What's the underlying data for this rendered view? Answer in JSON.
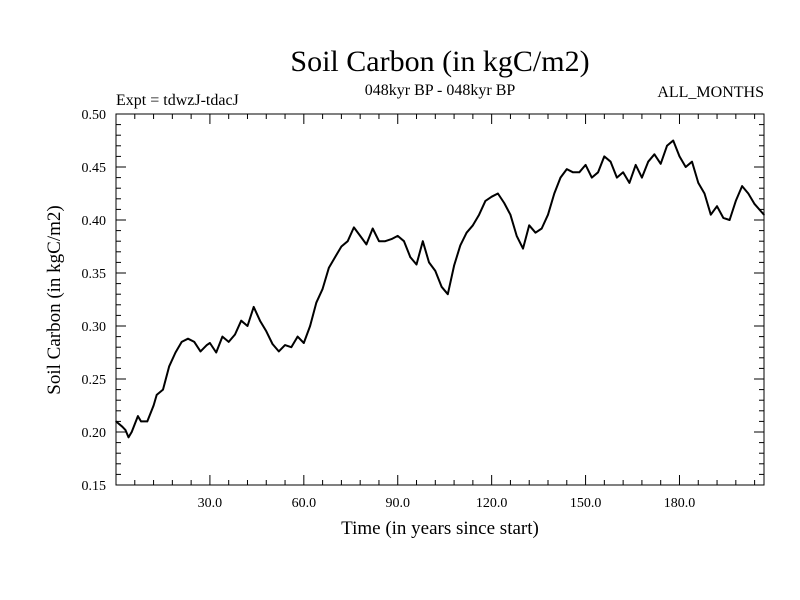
{
  "chart_data": {
    "type": "line",
    "title": "Soil Carbon (in kgC/m2)",
    "subtitle_left": "Expt = tdwzJ-tdacJ",
    "subtitle_center": "048kyr BP - 048kyr BP",
    "subtitle_right": "ALL_MONTHS",
    "xlabel": "Time (in years since start)",
    "ylabel": "Soil Carbon (in kgC/m2)",
    "xlim": [
      0,
      207
    ],
    "ylim": [
      0.15,
      0.5
    ],
    "x_ticks": [
      30,
      60,
      90,
      120,
      150,
      180
    ],
    "x_tick_labels": [
      "30.0",
      "60.0",
      "90.0",
      "120.0",
      "150.0",
      "180.0"
    ],
    "y_ticks": [
      0.15,
      0.2,
      0.25,
      0.3,
      0.35,
      0.4,
      0.45,
      0.5
    ],
    "y_tick_labels": [
      "0.15",
      "0.20",
      "0.25",
      "0.30",
      "0.35",
      "0.40",
      "0.45",
      "0.50"
    ],
    "series": [
      {
        "name": "Soil Carbon",
        "x": [
          0,
          2,
          3,
          4,
          5,
          7,
          8,
          10,
          12,
          13,
          15,
          17,
          19,
          21,
          23,
          25,
          27,
          29,
          30,
          32,
          34,
          36,
          38,
          40,
          42,
          44,
          46,
          48,
          50,
          52,
          54,
          56,
          58,
          60,
          62,
          64,
          66,
          68,
          70,
          72,
          74,
          76,
          78,
          80,
          82,
          84,
          86,
          88,
          90,
          92,
          94,
          96,
          98,
          100,
          102,
          104,
          106,
          108,
          110,
          112,
          114,
          116,
          118,
          120,
          122,
          124,
          126,
          128,
          130,
          132,
          134,
          136,
          138,
          140,
          142,
          144,
          146,
          148,
          150,
          152,
          154,
          156,
          158,
          160,
          162,
          164,
          166,
          168,
          170,
          172,
          174,
          176,
          178,
          180,
          182,
          184,
          186,
          188,
          190,
          192,
          194,
          196,
          198,
          200,
          202,
          204,
          207
        ],
        "values": [
          0.21,
          0.205,
          0.202,
          0.195,
          0.2,
          0.215,
          0.21,
          0.21,
          0.225,
          0.235,
          0.24,
          0.262,
          0.275,
          0.285,
          0.288,
          0.285,
          0.276,
          0.282,
          0.284,
          0.275,
          0.29,
          0.285,
          0.292,
          0.305,
          0.3,
          0.318,
          0.305,
          0.295,
          0.283,
          0.276,
          0.282,
          0.28,
          0.29,
          0.284,
          0.3,
          0.322,
          0.335,
          0.355,
          0.365,
          0.375,
          0.38,
          0.393,
          0.385,
          0.377,
          0.392,
          0.38,
          0.38,
          0.382,
          0.385,
          0.38,
          0.365,
          0.358,
          0.38,
          0.36,
          0.352,
          0.337,
          0.33,
          0.357,
          0.376,
          0.388,
          0.395,
          0.405,
          0.418,
          0.422,
          0.425,
          0.416,
          0.405,
          0.385,
          0.373,
          0.395,
          0.388,
          0.392,
          0.405,
          0.425,
          0.44,
          0.448,
          0.445,
          0.445,
          0.452,
          0.44,
          0.445,
          0.46,
          0.455,
          0.44,
          0.445,
          0.435,
          0.452,
          0.44,
          0.455,
          0.462,
          0.453,
          0.47,
          0.475,
          0.46,
          0.45,
          0.455,
          0.435,
          0.425,
          0.405,
          0.413,
          0.402,
          0.4,
          0.418,
          0.432,
          0.425,
          0.415,
          0.405
        ]
      }
    ],
    "grid": false,
    "color": "#000000"
  }
}
